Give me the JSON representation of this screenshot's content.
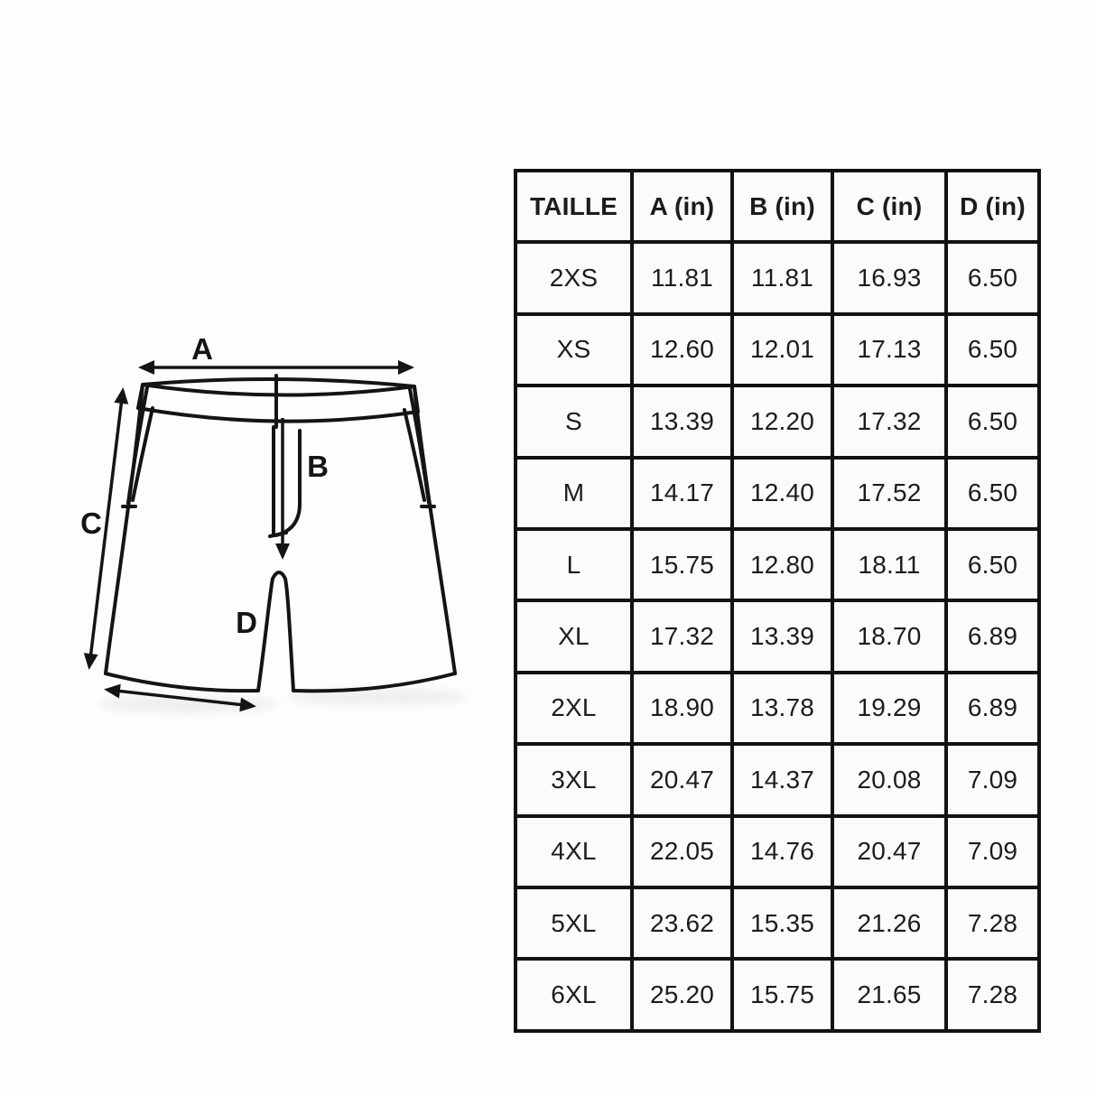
{
  "diagram": {
    "labels": {
      "a": "A",
      "b": "B",
      "c": "C",
      "d": "D"
    }
  },
  "chart_data": {
    "type": "table",
    "columns": [
      "TAILLE",
      "A (in)",
      "B (in)",
      "C (in)",
      "D (in)"
    ],
    "rows": [
      [
        "2XS",
        "11.81",
        "11.81",
        "16.93",
        "6.50"
      ],
      [
        "XS",
        "12.60",
        "12.01",
        "17.13",
        "6.50"
      ],
      [
        "S",
        "13.39",
        "12.20",
        "17.32",
        "6.50"
      ],
      [
        "M",
        "14.17",
        "12.40",
        "17.52",
        "6.50"
      ],
      [
        "L",
        "15.75",
        "12.80",
        "18.11",
        "6.50"
      ],
      [
        "XL",
        "17.32",
        "13.39",
        "18.70",
        "6.89"
      ],
      [
        "2XL",
        "18.90",
        "13.78",
        "19.29",
        "6.89"
      ],
      [
        "3XL",
        "20.47",
        "14.37",
        "20.08",
        "7.09"
      ],
      [
        "4XL",
        "22.05",
        "14.76",
        "20.47",
        "7.09"
      ],
      [
        "5XL",
        "23.62",
        "15.35",
        "21.26",
        "7.28"
      ],
      [
        "6XL",
        "25.20",
        "15.75",
        "21.65",
        "7.28"
      ]
    ]
  },
  "colors": {
    "line": "#141414",
    "table_border": "#121212",
    "text": "#1c1c1c",
    "background": "#fdfdfd",
    "cell_background": "#fbfbfb"
  }
}
